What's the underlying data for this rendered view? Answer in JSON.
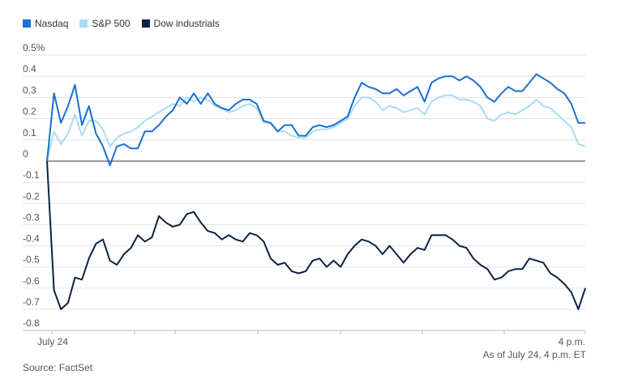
{
  "chart_data": {
    "type": "line",
    "y_unit_label": "0.5%",
    "y_ticks": [
      0.5,
      0.4,
      0.3,
      0.2,
      0.1,
      0,
      -0.1,
      -0.2,
      -0.3,
      -0.4,
      -0.5,
      -0.6,
      -0.7,
      -0.8
    ],
    "y_tick_labels": [
      "0.5%",
      "0.4",
      "0.3",
      "0.2",
      "0.1",
      "0",
      "-0.1",
      "-0.2",
      "-0.3",
      "-0.4",
      "-0.5",
      "-0.6",
      "-0.7",
      "-0.8"
    ],
    "ylim": [
      -0.8,
      0.5
    ],
    "x_labels": {
      "start": "July 24",
      "end": "4 p.m."
    },
    "grid": "horizontal",
    "zero_line": true,
    "series": [
      {
        "name": "Nasdaq",
        "color": "#1a6fd4",
        "values": [
          0.0,
          0.32,
          0.18,
          0.26,
          0.36,
          0.17,
          0.26,
          0.13,
          0.07,
          -0.02,
          0.07,
          0.08,
          0.06,
          0.06,
          0.14,
          0.14,
          0.17,
          0.21,
          0.24,
          0.3,
          0.27,
          0.32,
          0.27,
          0.32,
          0.27,
          0.25,
          0.24,
          0.27,
          0.29,
          0.29,
          0.27,
          0.19,
          0.18,
          0.14,
          0.17,
          0.17,
          0.12,
          0.12,
          0.16,
          0.17,
          0.16,
          0.17,
          0.19,
          0.21,
          0.3,
          0.37,
          0.35,
          0.34,
          0.32,
          0.32,
          0.34,
          0.31,
          0.33,
          0.35,
          0.28,
          0.37,
          0.39,
          0.4,
          0.4,
          0.38,
          0.4,
          0.38,
          0.35,
          0.3,
          0.28,
          0.32,
          0.35,
          0.33,
          0.33,
          0.37,
          0.41,
          0.39,
          0.37,
          0.34,
          0.32,
          0.27,
          0.18,
          0.18
        ]
      },
      {
        "name": "S&P 500",
        "color": "#a8dcf5",
        "values": [
          0.0,
          0.14,
          0.08,
          0.13,
          0.22,
          0.12,
          0.19,
          0.19,
          0.15,
          0.07,
          0.11,
          0.13,
          0.14,
          0.16,
          0.19,
          0.21,
          0.23,
          0.25,
          0.27,
          0.26,
          0.3,
          0.28,
          0.3,
          0.29,
          0.26,
          0.25,
          0.23,
          0.24,
          0.26,
          0.27,
          0.25,
          0.18,
          0.18,
          0.14,
          0.14,
          0.12,
          0.11,
          0.11,
          0.14,
          0.15,
          0.15,
          0.16,
          0.18,
          0.2,
          0.26,
          0.3,
          0.3,
          0.28,
          0.24,
          0.26,
          0.25,
          0.23,
          0.24,
          0.25,
          0.22,
          0.28,
          0.3,
          0.31,
          0.31,
          0.29,
          0.29,
          0.28,
          0.26,
          0.2,
          0.19,
          0.22,
          0.23,
          0.22,
          0.24,
          0.26,
          0.29,
          0.26,
          0.25,
          0.22,
          0.19,
          0.16,
          0.08,
          0.07
        ]
      },
      {
        "name": "Dow industrials",
        "color": "#0b2244",
        "values": [
          0.0,
          -0.61,
          -0.7,
          -0.67,
          -0.55,
          -0.56,
          -0.46,
          -0.39,
          -0.37,
          -0.47,
          -0.49,
          -0.44,
          -0.41,
          -0.35,
          -0.38,
          -0.36,
          -0.26,
          -0.29,
          -0.31,
          -0.3,
          -0.25,
          -0.24,
          -0.29,
          -0.33,
          -0.34,
          -0.37,
          -0.35,
          -0.37,
          -0.38,
          -0.34,
          -0.35,
          -0.38,
          -0.46,
          -0.49,
          -0.48,
          -0.52,
          -0.53,
          -0.52,
          -0.47,
          -0.46,
          -0.5,
          -0.47,
          -0.5,
          -0.44,
          -0.4,
          -0.37,
          -0.38,
          -0.4,
          -0.44,
          -0.4,
          -0.44,
          -0.48,
          -0.44,
          -0.41,
          -0.42,
          -0.35,
          -0.35,
          -0.35,
          -0.37,
          -0.4,
          -0.41,
          -0.46,
          -0.49,
          -0.51,
          -0.56,
          -0.55,
          -0.52,
          -0.51,
          -0.51,
          -0.46,
          -0.47,
          -0.48,
          -0.53,
          -0.55,
          -0.58,
          -0.62,
          -0.7,
          -0.6
        ]
      }
    ]
  },
  "footer": {
    "note": "As of July 24, 4 p.m. ET",
    "source": "Source: FactSet"
  }
}
